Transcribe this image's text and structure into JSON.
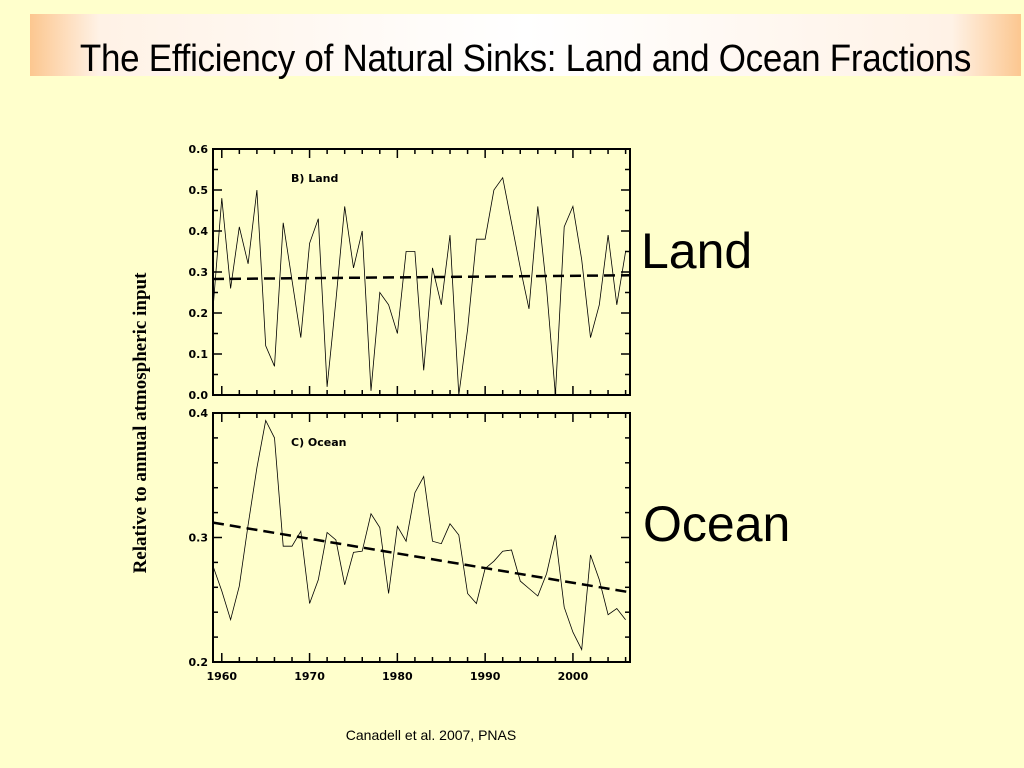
{
  "slide": {
    "title": "The Efficiency of Natural Sinks: Land and Ocean Fractions",
    "ylabel": "Relative to annual atmospheric input",
    "land_label": "Land",
    "ocean_label": "Ocean",
    "citation": "Canadell et al. 2007, PNAS",
    "background_color": "#ffffcc"
  },
  "chart_data": [
    {
      "type": "line",
      "panel_label": "B) Land",
      "xlim": [
        1959,
        2006.5
      ],
      "ylim": [
        0.0,
        0.6
      ],
      "y_ticks": [
        "0.0",
        "0.1",
        "0.2",
        "0.3",
        "0.4",
        "0.5",
        "0.6"
      ],
      "x_ticks": [
        1960,
        1970,
        1980,
        1990,
        2000
      ],
      "x": [
        1959,
        1960,
        1961,
        1962,
        1963,
        1964,
        1965,
        1966,
        1967,
        1968,
        1969,
        1970,
        1971,
        1972,
        1973,
        1974,
        1975,
        1976,
        1977,
        1978,
        1979,
        1980,
        1981,
        1982,
        1983,
        1984,
        1985,
        1986,
        1987,
        1988,
        1989,
        1990,
        1991,
        1992,
        1993,
        1994,
        1995,
        1996,
        1997,
        1998,
        1999,
        2000,
        2001,
        2002,
        2003,
        2004,
        2005,
        2006
      ],
      "series": [
        {
          "values": [
            0.21,
            0.48,
            0.26,
            0.41,
            0.32,
            0.5,
            0.12,
            0.07,
            0.42,
            0.28,
            0.14,
            0.37,
            0.43,
            0.02,
            0.23,
            0.46,
            0.31,
            0.4,
            0.01,
            0.25,
            0.22,
            0.15,
            0.35,
            0.35,
            0.06,
            0.31,
            0.22,
            0.39,
            0.0,
            0.16,
            0.38,
            0.38,
            0.5,
            0.53,
            0.42,
            0.31,
            0.21,
            0.46,
            0.26,
            0.0,
            0.41,
            0.46,
            0.33,
            0.14,
            0.22,
            0.39,
            0.22,
            0.35
          ]
        },
        {
          "style": "dashed",
          "values": [
            0.283,
            0.292
          ],
          "x": [
            1959,
            2006.5
          ]
        }
      ]
    },
    {
      "type": "line",
      "panel_label": "C) Ocean",
      "xlim": [
        1959,
        2006.5
      ],
      "ylim": [
        0.2,
        0.4
      ],
      "y_ticks": [
        "0.2",
        "0.3",
        "0.4"
      ],
      "x_ticks": [
        1960,
        1970,
        1980,
        1990,
        2000
      ],
      "xtick_labels": [
        "1960",
        "1970",
        "1980",
        "1990",
        "2000"
      ],
      "x": [
        1959,
        1960,
        1961,
        1962,
        1963,
        1964,
        1965,
        1966,
        1967,
        1968,
        1969,
        1970,
        1971,
        1972,
        1973,
        1974,
        1975,
        1976,
        1977,
        1978,
        1979,
        1980,
        1981,
        1982,
        1983,
        1984,
        1985,
        1986,
        1987,
        1988,
        1989,
        1990,
        1991,
        1992,
        1993,
        1994,
        1995,
        1996,
        1997,
        1998,
        1999,
        2000,
        2001,
        2002,
        2003,
        2004,
        2005,
        2006
      ],
      "series": [
        {
          "values": [
            0.277,
            0.257,
            0.234,
            0.261,
            0.31,
            0.356,
            0.394,
            0.38,
            0.293,
            0.293,
            0.305,
            0.247,
            0.266,
            0.304,
            0.298,
            0.262,
            0.288,
            0.289,
            0.319,
            0.308,
            0.255,
            0.309,
            0.297,
            0.336,
            0.349,
            0.297,
            0.295,
            0.311,
            0.302,
            0.255,
            0.247,
            0.275,
            0.281,
            0.289,
            0.29,
            0.265,
            0.259,
            0.253,
            0.271,
            0.302,
            0.244,
            0.224,
            0.21,
            0.286,
            0.266,
            0.238,
            0.243,
            0.234
          ]
        },
        {
          "style": "dashed",
          "values": [
            0.312,
            0.256
          ],
          "x": [
            1959,
            2006.5
          ]
        }
      ]
    }
  ]
}
